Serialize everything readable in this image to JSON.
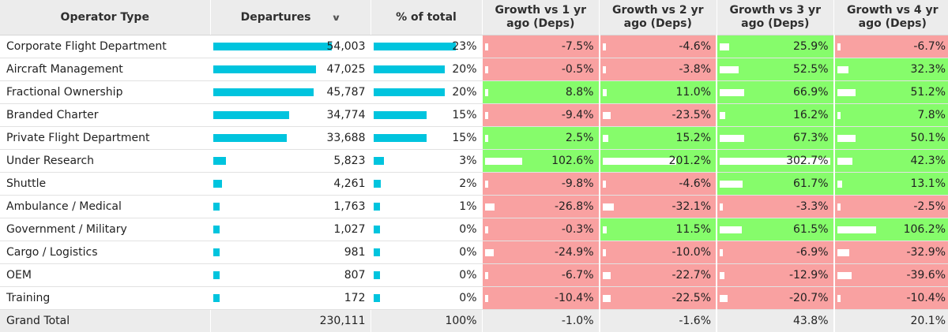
{
  "headers": {
    "operator_type": "Operator Type",
    "departures": "Departures",
    "pct_total": "% of total",
    "growth_1": "Growth vs 1 yr ago (Deps)",
    "growth_2": "Growth vs 2 yr ago (Deps)",
    "growth_3": "Growth vs 3 yr ago (Deps)",
    "growth_4": "Growth vs 4 yr ago (Deps)",
    "sort_icon": "chevron-down-icon"
  },
  "colors": {
    "bar": "#00c4de",
    "positive": "#86fc6b",
    "negative": "#f9a1a1",
    "header_bg": "#ececec"
  },
  "max_departures": 54003,
  "max_pct": 23,
  "max_growth": 302.7,
  "rows": [
    {
      "operator": "Corporate Flight Department",
      "departures": "54,003",
      "dep_value": 54003,
      "pct": "23%",
      "pct_value": 23,
      "growth": [
        "-7.5%",
        "-4.6%",
        "25.9%",
        "-6.7%"
      ],
      "growth_values": [
        -7.5,
        -4.6,
        25.9,
        -6.7
      ]
    },
    {
      "operator": "Aircraft Management",
      "departures": "47,025",
      "dep_value": 47025,
      "pct": "20%",
      "pct_value": 20,
      "growth": [
        "-0.5%",
        "-3.8%",
        "52.5%",
        "32.3%"
      ],
      "growth_values": [
        -0.5,
        -3.8,
        52.5,
        32.3
      ]
    },
    {
      "operator": "Fractional Ownership",
      "departures": "45,787",
      "dep_value": 45787,
      "pct": "20%",
      "pct_value": 20,
      "growth": [
        "8.8%",
        "11.0%",
        "66.9%",
        "51.2%"
      ],
      "growth_values": [
        8.8,
        11.0,
        66.9,
        51.2
      ]
    },
    {
      "operator": "Branded Charter",
      "departures": "34,774",
      "dep_value": 34774,
      "pct": "15%",
      "pct_value": 15,
      "growth": [
        "-9.4%",
        "-23.5%",
        "16.2%",
        "7.8%"
      ],
      "growth_values": [
        -9.4,
        -23.5,
        16.2,
        7.8
      ]
    },
    {
      "operator": "Private Flight Department",
      "departures": "33,688",
      "dep_value": 33688,
      "pct": "15%",
      "pct_value": 15,
      "growth": [
        "2.5%",
        "15.2%",
        "67.3%",
        "50.1%"
      ],
      "growth_values": [
        2.5,
        15.2,
        67.3,
        50.1
      ]
    },
    {
      "operator": "Under Research",
      "departures": "5,823",
      "dep_value": 5823,
      "pct": "3%",
      "pct_value": 3,
      "growth": [
        "102.6%",
        "201.2%",
        "302.7%",
        "42.3%"
      ],
      "growth_values": [
        102.6,
        201.2,
        302.7,
        42.3
      ]
    },
    {
      "operator": "Shuttle",
      "departures": "4,261",
      "dep_value": 4261,
      "pct": "2%",
      "pct_value": 2,
      "growth": [
        "-9.8%",
        "-4.6%",
        "61.7%",
        "13.1%"
      ],
      "growth_values": [
        -9.8,
        -4.6,
        61.7,
        13.1
      ]
    },
    {
      "operator": "Ambulance / Medical",
      "departures": "1,763",
      "dep_value": 1763,
      "pct": "1%",
      "pct_value": 1,
      "growth": [
        "-26.8%",
        "-32.1%",
        "-3.3%",
        "-2.5%"
      ],
      "growth_values": [
        -26.8,
        -32.1,
        -3.3,
        -2.5
      ]
    },
    {
      "operator": "Government / Military",
      "departures": "1,027",
      "dep_value": 1027,
      "pct": "0%",
      "pct_value": 0.45,
      "growth": [
        "-0.3%",
        "11.5%",
        "61.5%",
        "106.2%"
      ],
      "growth_values": [
        -0.3,
        11.5,
        61.5,
        106.2
      ]
    },
    {
      "operator": "Cargo / Logistics",
      "departures": "981",
      "dep_value": 981,
      "pct": "0%",
      "pct_value": 0.43,
      "growth": [
        "-24.9%",
        "-10.0%",
        "-6.9%",
        "-32.9%"
      ],
      "growth_values": [
        -24.9,
        -10.0,
        -6.9,
        -32.9
      ]
    },
    {
      "operator": "OEM",
      "departures": "807",
      "dep_value": 807,
      "pct": "0%",
      "pct_value": 0.35,
      "growth": [
        "-6.7%",
        "-22.7%",
        "-12.9%",
        "-39.6%"
      ],
      "growth_values": [
        -6.7,
        -22.7,
        -12.9,
        -39.6
      ]
    },
    {
      "operator": "Training",
      "departures": "172",
      "dep_value": 172,
      "pct": "0%",
      "pct_value": 0.07,
      "growth": [
        "-10.4%",
        "-22.5%",
        "-20.7%",
        "-10.4%"
      ],
      "growth_values": [
        -10.4,
        -22.5,
        -20.7,
        -10.4
      ]
    }
  ],
  "total": {
    "label": "Grand Total",
    "departures": "230,111",
    "pct": "100%",
    "growth": [
      "-1.0%",
      "-1.6%",
      "43.8%",
      "20.1%"
    ]
  }
}
